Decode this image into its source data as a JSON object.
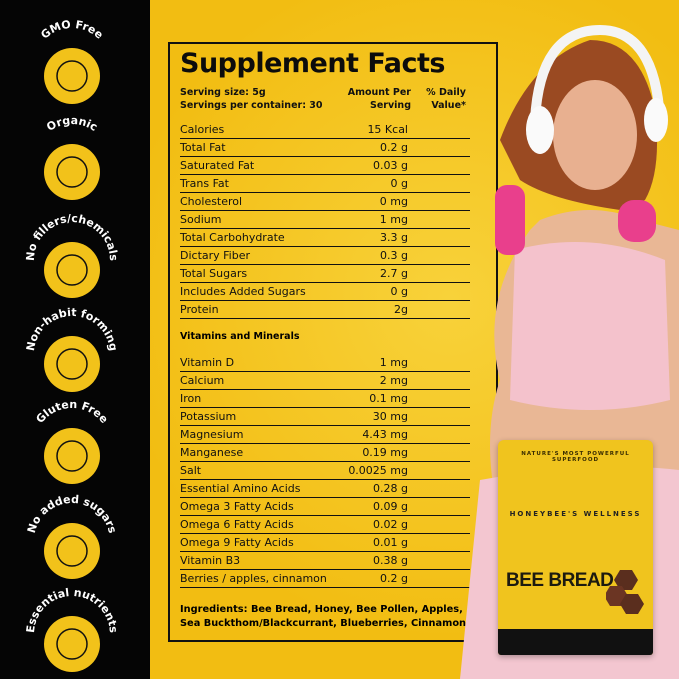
{
  "badges": [
    {
      "label": "GMO Free",
      "icon": "flask-plant-icon"
    },
    {
      "label": "Organic",
      "icon": "leaf-icon"
    },
    {
      "label": "No fillers/chemicals",
      "icon": "dropper-icon"
    },
    {
      "label": "Non-habit forming",
      "icon": "lifestyle-icon"
    },
    {
      "label": "Gluten Free",
      "icon": "no-wheat-icon"
    },
    {
      "label": "No added sugars",
      "icon": "no-sugar-icon"
    },
    {
      "label": "Essential nutrients",
      "icon": "apple-nutrients-icon"
    }
  ],
  "facts": {
    "title": "Supplement Facts",
    "serving_size": "Serving size: 5g",
    "servings_per_container": "Servings per container: 30",
    "amount_header_1": "Amount Per",
    "amount_header_2": "Serving",
    "dv_header_1": "% Daily",
    "dv_header_2": "Value*",
    "nutrients": [
      {
        "name": "Calories",
        "amount": "15 Kcal"
      },
      {
        "name": "Total Fat",
        "amount": "0.2 g"
      },
      {
        "name": "Saturated Fat",
        "amount": "0.03 g"
      },
      {
        "name": "Trans Fat",
        "amount": "0 g"
      },
      {
        "name": "Cholesterol",
        "amount": "0 mg"
      },
      {
        "name": "Sodium",
        "amount": "1 mg"
      },
      {
        "name": "Total Carbohydrate",
        "amount": "3.3 g"
      },
      {
        "name": "Dictary Fiber",
        "amount": "0.3 g"
      },
      {
        "name": "Total Sugars",
        "amount": "2.7 g"
      },
      {
        "name": "Includes Added Sugars",
        "amount": "0 g"
      },
      {
        "name": "Protein",
        "amount": "2g"
      }
    ],
    "vitamins_header": "Vitamins and Minerals",
    "vitamins": [
      {
        "name": "Vitamin D",
        "amount": "1 mg"
      },
      {
        "name": "Calcium",
        "amount": "2 mg"
      },
      {
        "name": "Iron",
        "amount": "0.1 mg"
      },
      {
        "name": "Potassium",
        "amount": "30 mg"
      },
      {
        "name": "Magnesium",
        "amount": "4.43 mg"
      },
      {
        "name": "Manganese",
        "amount": "0.19 mg"
      },
      {
        "name": "Salt",
        "amount": "0.0025 mg"
      },
      {
        "name": "Essential Amino Acids",
        "amount": "0.28 g"
      },
      {
        "name": "Omega 3 Fatty Acids",
        "amount": "0.09 g"
      },
      {
        "name": "Omega 6 Fatty Acids",
        "amount": "0.02 g"
      },
      {
        "name": "Omega 9 Fatty Acids",
        "amount": "0.01 g"
      },
      {
        "name": "Vitamin B3",
        "amount": "0.38 g"
      },
      {
        "name": "Berries / apples, cinnamon",
        "amount": "0.2 g"
      }
    ],
    "ingredients": "Ingredients: Bee Bread, Honey, Bee Pollen, Apples, Sea Buckthom/Blackcurrant, Blueberries, Cinnamon."
  },
  "bag": {
    "tagline": "NATURE'S MOST POWERFUL SUPERFOOD",
    "brand": "HONEYBEE'S WELLNESS",
    "product": "BEE BREAD"
  },
  "colors": {
    "brand_yellow": "#f4c21c",
    "black": "#050505",
    "pink": "#f3b8c8"
  }
}
